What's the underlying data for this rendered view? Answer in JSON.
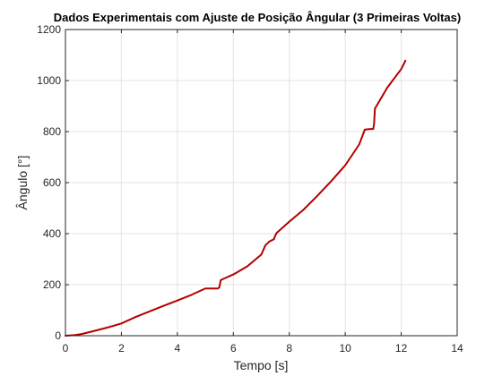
{
  "chart_data": {
    "type": "line",
    "title": "Dados Experimentais com Ajuste de Posição Ângular (3 Primeiras Voltas)",
    "xlabel": "Tempo [s]",
    "ylabel": "Ângulo [°]",
    "xlim": [
      0,
      14
    ],
    "ylim": [
      0,
      1200
    ],
    "xticks": [
      0,
      2,
      4,
      6,
      8,
      10,
      12,
      14
    ],
    "yticks": [
      0,
      200,
      400,
      600,
      800,
      1000,
      1200
    ],
    "grid": true,
    "legend": "none",
    "series": [
      {
        "color": "#b30000",
        "x": [
          0,
          0.3,
          0.6,
          1.0,
          1.5,
          2.0,
          2.5,
          3.0,
          3.5,
          4.0,
          4.5,
          5.0,
          5.3,
          5.45,
          5.5,
          5.55,
          6.0,
          6.5,
          7.0,
          7.15,
          7.3,
          7.45,
          7.5,
          7.55,
          8.0,
          8.5,
          9.0,
          9.5,
          10.0,
          10.5,
          10.7,
          10.9,
          11.0,
          11.03,
          11.06,
          11.5,
          12.0,
          12.15
        ],
        "y": [
          0,
          2,
          7,
          18,
          32,
          48,
          73,
          95,
          117,
          138,
          160,
          185,
          185,
          185,
          190,
          218,
          240,
          272,
          318,
          355,
          370,
          378,
          393,
          403,
          447,
          493,
          548,
          606,
          668,
          750,
          808,
          810,
          810,
          830,
          890,
          972,
          1045,
          1078
        ]
      }
    ]
  }
}
